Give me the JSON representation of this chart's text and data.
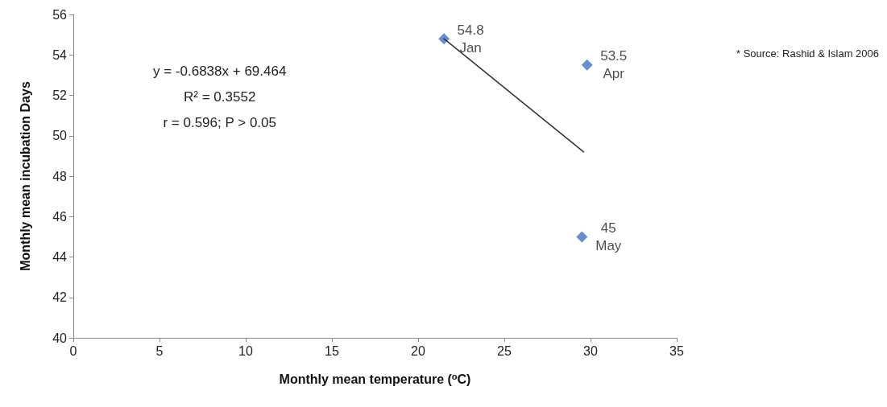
{
  "chart_data": {
    "type": "scatter",
    "xlabel": "Monthly mean temperature ($^{o}$C)",
    "ylabel": "Monthly mean incubation Days",
    "xlim": [
      0,
      35
    ],
    "xticks": [
      0,
      5,
      10,
      15,
      20,
      25,
      30,
      35
    ],
    "ylim": [
      40,
      56
    ],
    "yticks": [
      40,
      42,
      44,
      46,
      48,
      50,
      52,
      54,
      56
    ],
    "grid": false,
    "series": [
      {
        "color": "#4472c4",
        "marker": "diamond",
        "x": [
          21.5,
          29.8,
          29.5
        ],
        "values": [
          54.8,
          53.5,
          45
        ],
        "value_labels": [
          "54.8\nJan",
          "53.5\nApr",
          "45\nMay"
        ]
      },
      {
        "type": "line",
        "color": "#333333",
        "marker": "none",
        "line_style": "solid",
        "x": [
          21.5,
          29.6
        ],
        "values": [
          54.8,
          49.2
        ]
      }
    ],
    "annotations": [
      "y = -0.6838x + 69.464\nR² = 0.3552\nr = 0.596; P > 0.05",
      "* Source: Rashid & Islam 2006"
    ]
  }
}
